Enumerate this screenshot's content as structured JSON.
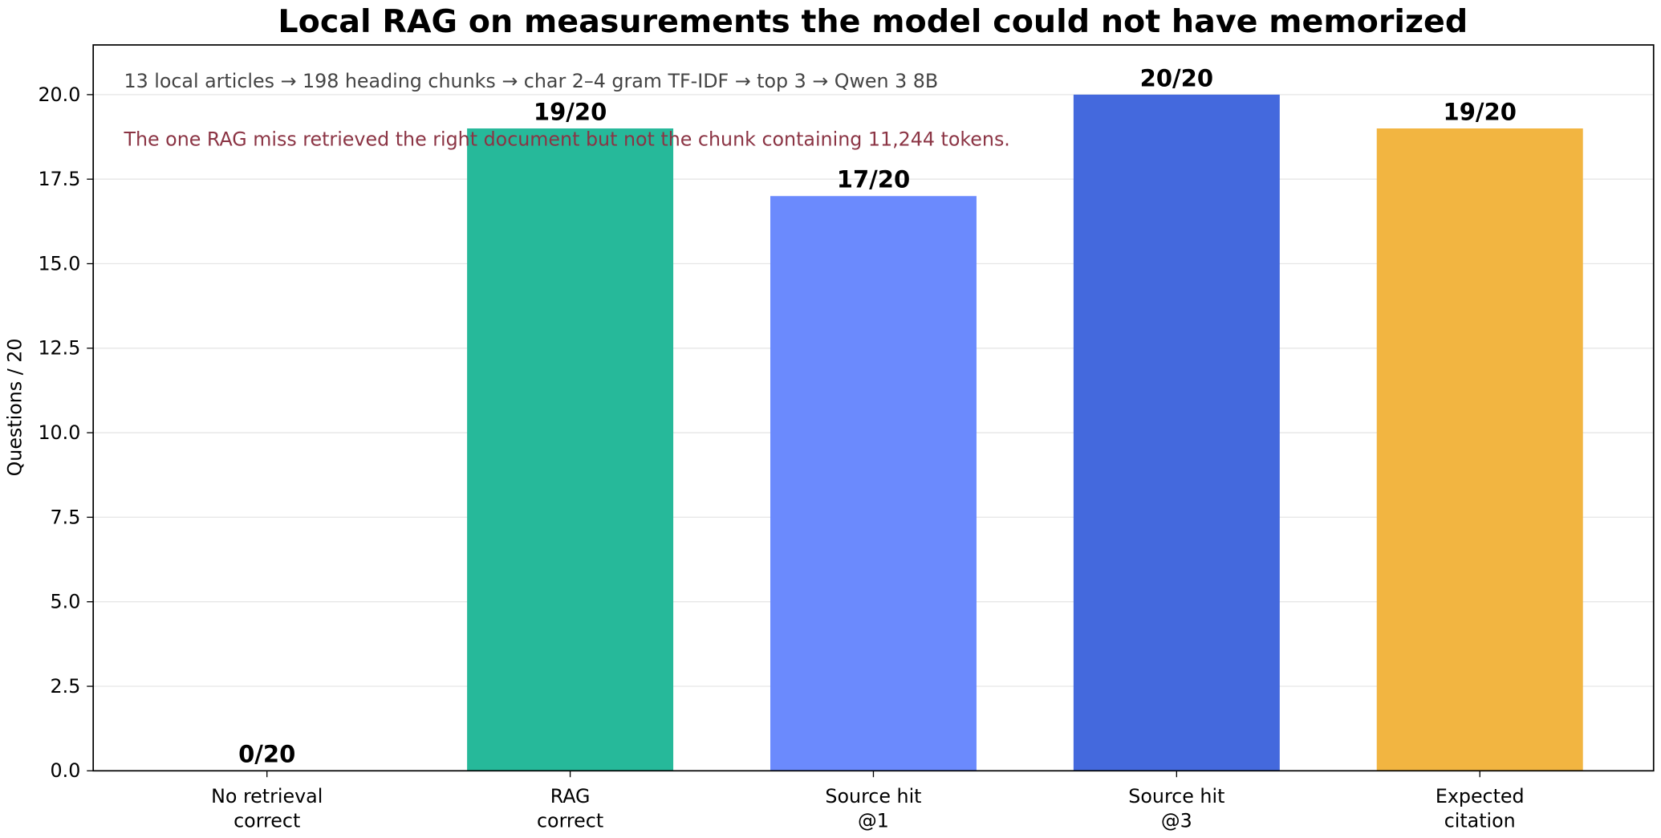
{
  "chart_data": {
    "type": "bar",
    "title": "Local RAG on measurements the model could not have memorized",
    "ylabel": "Questions / 20",
    "annotations": [
      {
        "text": "13 local articles → 198 heading chunks → char 2–4 gram TF-IDF → top 3 → Qwen 3 8B",
        "color": "#444444"
      },
      {
        "text": "The one RAG miss retrieved the right document but not the chunk containing 11,244 tokens.",
        "color": "#8b3444"
      }
    ],
    "categories": [
      [
        "No retrieval",
        "correct"
      ],
      [
        "RAG",
        "correct"
      ],
      [
        "Source hit",
        "@1"
      ],
      [
        "Source hit",
        "@3"
      ],
      [
        "Expected",
        "citation"
      ]
    ],
    "values": [
      0,
      19,
      17,
      20,
      19
    ],
    "value_labels": [
      "0/20",
      "19/20",
      "17/20",
      "20/20",
      "19/20"
    ],
    "colors": [
      null,
      "#26b99a",
      "#6b8afd",
      "#4469dd",
      "#f2b541"
    ],
    "ylim": [
      0,
      21.47
    ],
    "yticks": [
      {
        "value": 0,
        "label": "0.0"
      },
      2.5,
      {
        "value": 5,
        "label": "5.0"
      },
      7.5,
      {
        "value": 10,
        "label": "10.0"
      },
      12.5,
      {
        "value": 15,
        "label": "15.0"
      },
      17.5,
      {
        "value": 20,
        "label": "20.0"
      }
    ],
    "grid": true
  }
}
